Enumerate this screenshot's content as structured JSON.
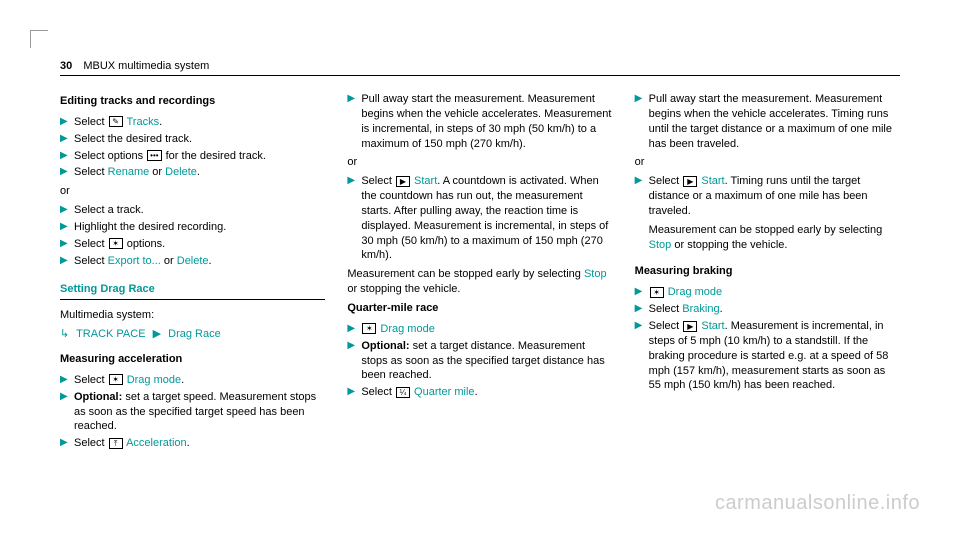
{
  "header": {
    "page_number": "30",
    "section": "MBUX multimedia system"
  },
  "col1": {
    "editing_title": "Editing tracks and recordings",
    "r1a": "Select ",
    "r1_icon": "✎",
    "r1_link": "Tracks",
    "r1b": ".",
    "r2": "Select the desired track.",
    "r3a": "Select options ",
    "r3_icon": "•••",
    "r3b": " for the desired track.",
    "r4a": "Select ",
    "r4_link1": "Rename",
    "r4_mid": " or ",
    "r4_link2": "Delete",
    "r4b": ".",
    "or": "or",
    "r5": "Select a track.",
    "r6": "Highlight the desired recording.",
    "r7a": "Select ",
    "r7_icon": "✶",
    "r7b": " options.",
    "r8a": "Select ",
    "r8_link1": "Export to...",
    "r8_mid": " or ",
    "r8_link2": "Delete",
    "r8b": ".",
    "drag_title": "Setting Drag Race",
    "ms_label": "Multimedia system:",
    "crumb1": "TRACK PACE",
    "crumb2": "Drag Race",
    "ma_title": "Measuring acceleration",
    "ma1a": "Select ",
    "ma1_icon": "✶",
    "ma1_link": "Drag mode",
    "ma1b": ".",
    "ma2a": "Optional:",
    "ma2b": " set a target speed. Measurement stops as soon as the specified target speed has been reached.",
    "ma3a": "Select ",
    "ma3_icon": "⤒",
    "ma3_link": "Acceleration",
    "ma3b": "."
  },
  "col2": {
    "p1": "Pull away start the measurement. Measurement begins when the vehicle accelerates. Measurement is incremental, in steps of 30 mph (50 km/h) to a maximum of 150 mph (270 km/h).",
    "or": "or",
    "s1a": "Select ",
    "s1_icon": "▶",
    "s1_link": "Start",
    "s1b": ". A countdown is activated. When the countdown has run out, the measurement starts. After pulling away, the reaction time is displayed. Measurement is incremental, in steps of 30 mph (50 km/h) to a maximum of 150 mph (270 km/h).",
    "stop_a": "Measurement can be stopped early by selecting ",
    "stop_link": "Stop",
    "stop_b": " or stopping the vehicle.",
    "qm_title": "Quarter-mile race",
    "qm1_icon": "✶",
    "qm1_link": "Drag mode",
    "qm2a": "Optional:",
    "qm2b": " set a target distance. Measurement stops as soon as the specified target distance has been reached.",
    "qm3a": "Select ",
    "qm3_icon": "¼",
    "qm3_link": "Quarter mile",
    "qm3b": "."
  },
  "col3": {
    "p1": "Pull away start the measurement. Measurement begins when the vehicle accelerates. Timing runs until the target distance or a maximum of one mile has been traveled.",
    "or": "or",
    "s1a": "Select ",
    "s1_icon": "▶",
    "s1_link": "Start",
    "s1b": ". Timing runs until the target distance or a maximum of one mile has been traveled.",
    "stop_a": "Measurement can be stopped early by selecting ",
    "stop_link": "Stop",
    "stop_b": " or stopping the vehicle.",
    "mb_title": "Measuring braking",
    "mb1_icon": "✶",
    "mb1_link": "Drag mode",
    "mb2a": "Select ",
    "mb2_link": "Braking",
    "mb2b": ".",
    "mb3a": "Select ",
    "mb3_icon": "▶",
    "mb3_link": "Start",
    "mb3b": ". Measurement is incremental, in steps of 5 mph (10 km/h) to a standstill. If the braking procedure is started e.g. at a speed of 58 mph (157 km/h), measurement starts as soon as 55 mph (150 km/h) has been reached."
  },
  "watermark": "carmanualsonline.info"
}
